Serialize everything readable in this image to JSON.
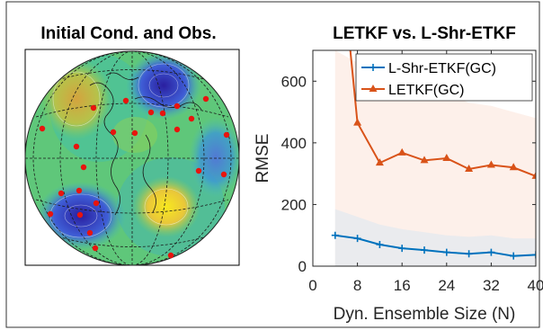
{
  "left_panel": {
    "title": "Initial Cond. and Obs."
  },
  "chart_data": {
    "type": "line",
    "title": "LETKF vs. L-Shr-ETKF",
    "xlabel": "Dyn. Ensemble Size (N)",
    "ylabel": "RMSE",
    "xlim": [
      0,
      40
    ],
    "ylim": [
      0,
      700
    ],
    "xticks": [
      0,
      8,
      16,
      24,
      32,
      40
    ],
    "yticks": [
      0,
      200,
      400,
      600
    ],
    "legend_position": "top-right",
    "series": [
      {
        "name": "L-Shr-ETKF(GC)",
        "color": "#0072BD",
        "marker": "plus",
        "x": [
          4,
          8,
          12,
          16,
          20,
          24,
          28,
          32,
          36,
          40
        ],
        "y": [
          100,
          90,
          70,
          58,
          52,
          45,
          40,
          45,
          33,
          37
        ],
        "band_upper": [
          185,
          160,
          135,
          120,
          110,
          100,
          95,
          100,
          90,
          90
        ]
      },
      {
        "name": "LETKF(GC)",
        "color": "#D95319",
        "marker": "triangle",
        "x": [
          4,
          8,
          12,
          16,
          20,
          24,
          28,
          32,
          36,
          40
        ],
        "y": [
          1200,
          465,
          335,
          368,
          343,
          350,
          315,
          328,
          320,
          292
        ],
        "band_upper": [
          700,
          660,
          610,
          600,
          580,
          560,
          530,
          520,
          500,
          480
        ]
      }
    ]
  }
}
